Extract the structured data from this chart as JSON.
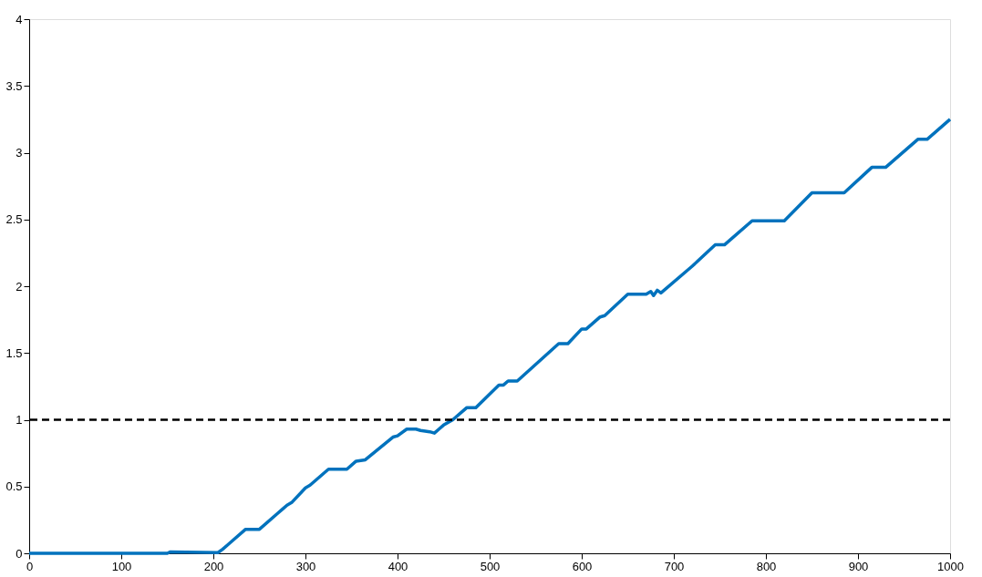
{
  "chart_data": {
    "type": "line",
    "xlim": [
      0,
      1000
    ],
    "ylim": [
      0,
      4
    ],
    "xticks": [
      0,
      100,
      200,
      300,
      400,
      500,
      600,
      700,
      800,
      900,
      1000
    ],
    "yticks": [
      0,
      {
        "value": 0.5,
        "label": "0.5"
      },
      1,
      {
        "value": 1.5,
        "label": "1.5"
      },
      2,
      {
        "value": 2.5,
        "label": "2.5"
      },
      3,
      {
        "value": 3.5,
        "label": "3.5"
      },
      4
    ],
    "grid": false,
    "marker": "none",
    "line_style": "solid",
    "series": [
      {
        "color": "#0072bd",
        "x": [
          0,
          150,
          153,
          205,
          210,
          215,
          235,
          250,
          270,
          275,
          280,
          285,
          300,
          305,
          325,
          345,
          355,
          365,
          395,
          400,
          410,
          420,
          425,
          435,
          440,
          445,
          450,
          460,
          475,
          485,
          510,
          515,
          520,
          530,
          575,
          585,
          600,
          605,
          620,
          625,
          650,
          670,
          675,
          678,
          682,
          686,
          720,
          745,
          755,
          785,
          820,
          850,
          885,
          915,
          930,
          965,
          975,
          1000
        ],
        "values": [
          0,
          0,
          0.01,
          0.005,
          0.03,
          0.06,
          0.18,
          0.18,
          0.3,
          0.33,
          0.36,
          0.38,
          0.49,
          0.51,
          0.63,
          0.63,
          0.69,
          0.7,
          0.87,
          0.88,
          0.93,
          0.93,
          0.92,
          0.91,
          0.9,
          0.93,
          0.96,
          1.0,
          1.09,
          1.09,
          1.26,
          1.26,
          1.29,
          1.29,
          1.57,
          1.57,
          1.68,
          1.68,
          1.77,
          1.78,
          1.94,
          1.94,
          1.96,
          1.93,
          1.97,
          1.95,
          2.15,
          2.31,
          2.31,
          2.49,
          2.49,
          2.7,
          2.7,
          2.89,
          2.89,
          3.1,
          3.1,
          3.25
        ]
      }
    ],
    "ref_lines": [
      {
        "axis": "y",
        "value": 1,
        "color": "#000000",
        "line_style": "dashed"
      }
    ]
  }
}
